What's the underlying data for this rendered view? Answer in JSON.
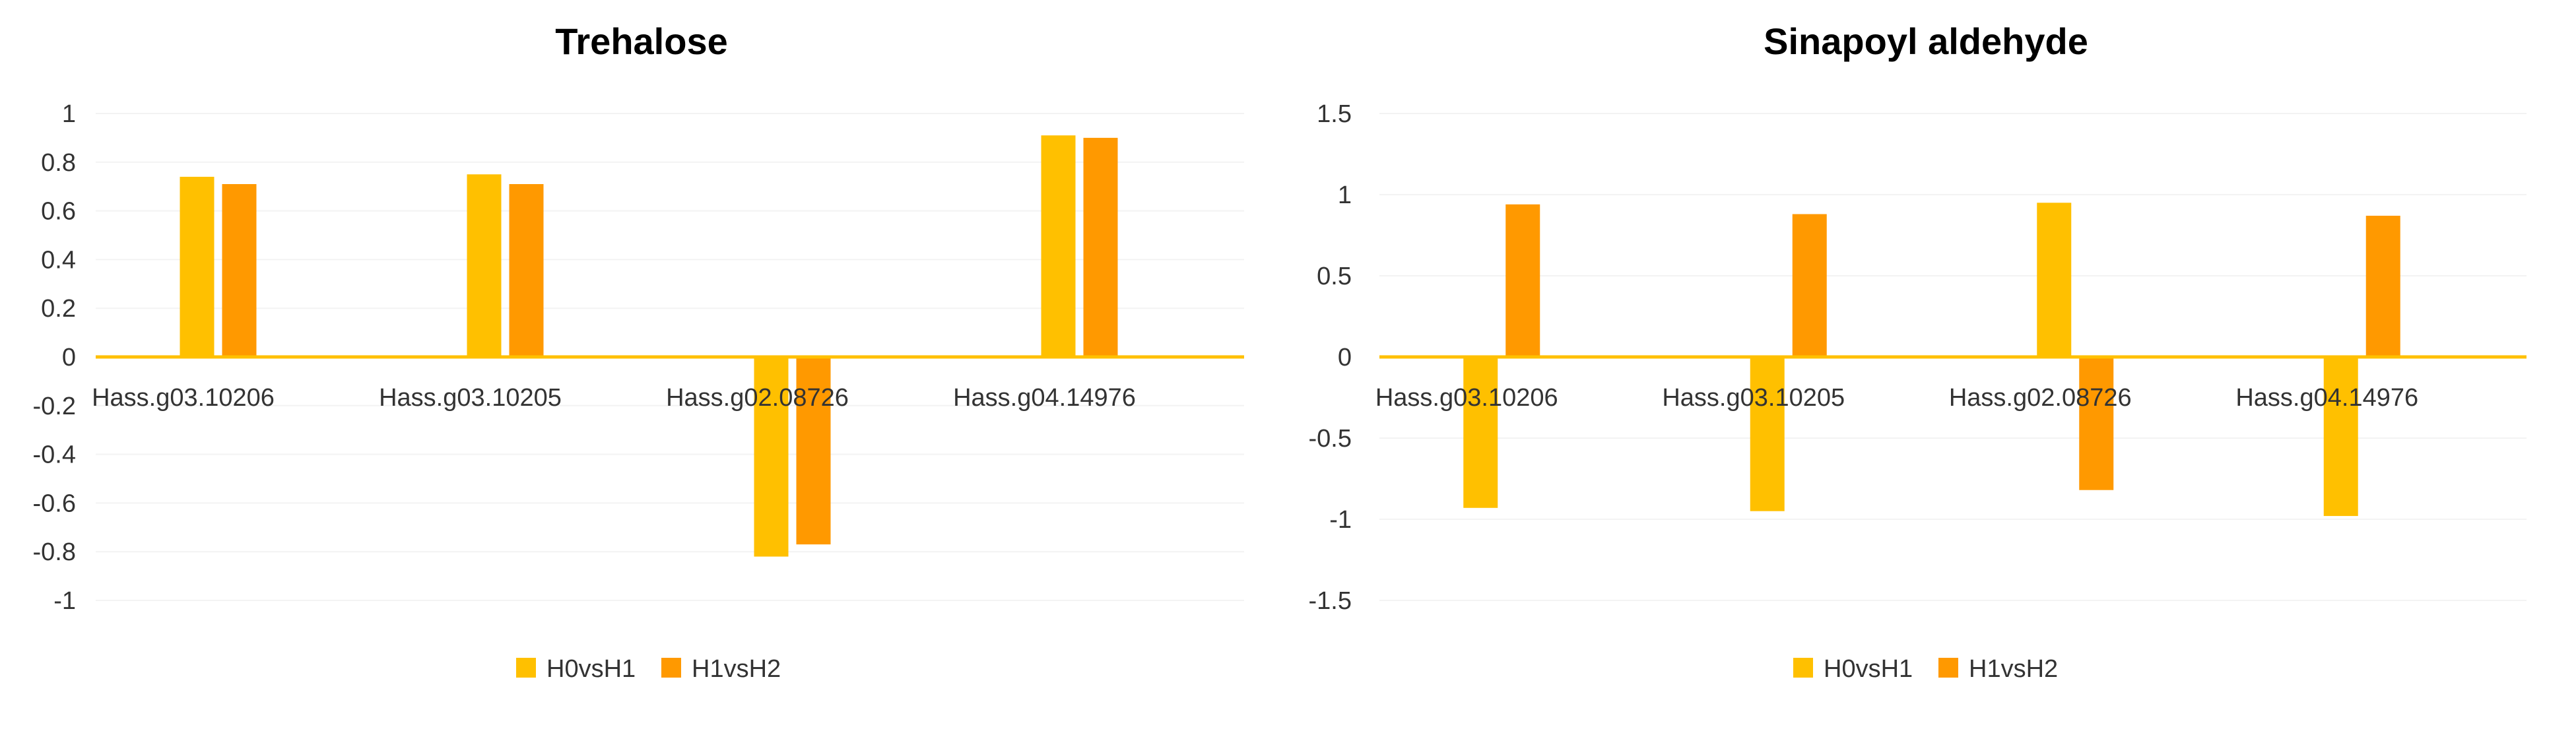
{
  "chart_data": [
    {
      "type": "bar",
      "title": "Trehalose",
      "categories": [
        "Hass.g03.10206",
        "Hass.g03.10205",
        "Hass.g02.08726",
        "Hass.g04.14976"
      ],
      "series": [
        {
          "name": "H0vsH1",
          "color": "#FFC000",
          "values": [
            0.74,
            0.75,
            -0.82,
            0.91
          ]
        },
        {
          "name": "H1vsH2",
          "color": "#FF9900",
          "values": [
            0.71,
            0.71,
            -0.77,
            0.9
          ]
        }
      ],
      "ylim": [
        -1,
        1
      ],
      "yticks": [
        1,
        0.8,
        0.6,
        0.4,
        0.2,
        0,
        -0.2,
        -0.4,
        -0.6,
        -0.8,
        -1
      ],
      "ytick_labels": [
        "1",
        "0.8",
        "0.6",
        "0.4",
        "0.2",
        "0",
        "-0.2",
        "-0.4",
        "-0.6",
        "-0.8",
        "-1"
      ],
      "axis_color": "#FFC000",
      "grid": false,
      "legend": "bottom"
    },
    {
      "type": "bar",
      "title": "Sinapoyl aldehyde",
      "categories": [
        "Hass.g03.10206",
        "Hass.g03.10205",
        "Hass.g02.08726",
        "Hass.g04.14976"
      ],
      "series": [
        {
          "name": "H0vsH1",
          "color": "#FFC000",
          "values": [
            -0.93,
            -0.95,
            0.95,
            -0.98
          ]
        },
        {
          "name": "H1vsH2",
          "color": "#FF9900",
          "values": [
            0.94,
            0.88,
            -0.82,
            0.87
          ]
        }
      ],
      "ylim": [
        -1.5,
        1.5
      ],
      "yticks": [
        1.5,
        1,
        0.5,
        0,
        -0.5,
        -1,
        -1.5
      ],
      "ytick_labels": [
        "1.5",
        "1",
        "0.5",
        "0",
        "-0.5",
        "-1",
        "-1.5"
      ],
      "axis_color": "#FFC000",
      "grid": false,
      "legend": "bottom"
    }
  ]
}
